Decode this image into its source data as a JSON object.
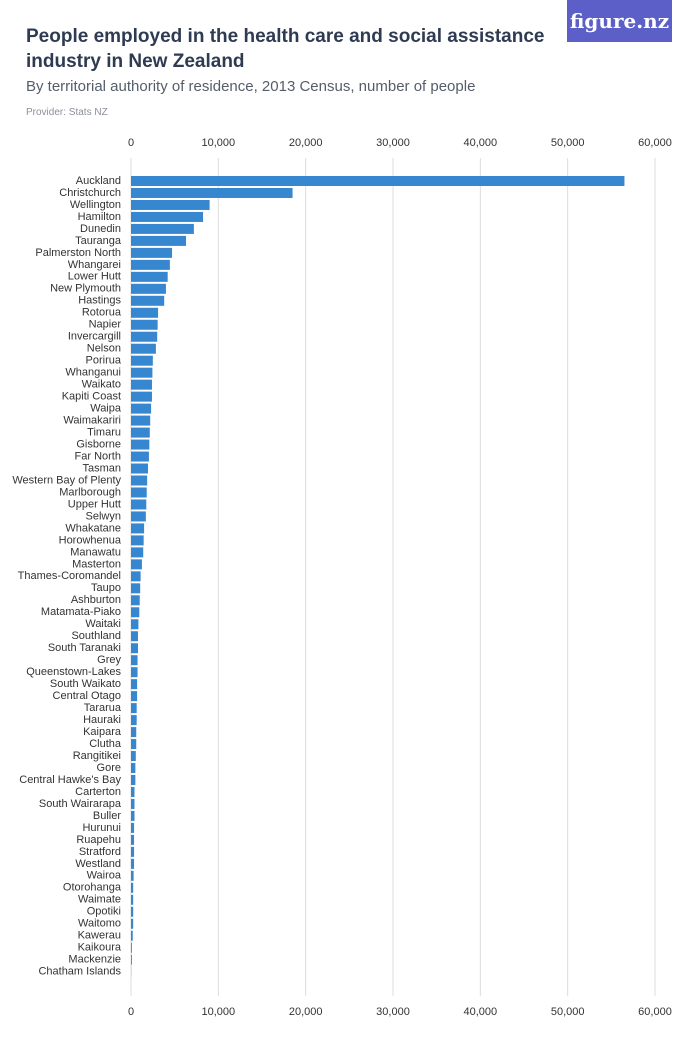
{
  "chart_data": {
    "type": "hbar",
    "title": "People employed in the health care and social assistance industry in New Zealand",
    "subtitle": "By territorial authority of residence, 2013 Census, number of people",
    "provider": "Provider: Stats NZ",
    "logo": "figure.nz",
    "color": "#3786d0",
    "grid": true,
    "xlim": [
      0,
      60000
    ],
    "xticks": [
      0,
      {
        "value": 10000,
        "label": "10,000"
      },
      {
        "value": 20000,
        "label": "20,000"
      },
      {
        "value": 30000,
        "label": "30,000"
      },
      {
        "value": 40000,
        "label": "40,000"
      },
      {
        "value": 50000,
        "label": "50,000"
      },
      {
        "value": 60000,
        "label": "60,000"
      }
    ],
    "categories": [
      "Auckland",
      "Christchurch",
      "Wellington",
      "Hamilton",
      "Dunedin",
      "Tauranga",
      "Palmerston North",
      "Whangarei",
      "Lower Hutt",
      "New Plymouth",
      "Hastings",
      "Rotorua",
      "Napier",
      "Invercargill",
      "Nelson",
      "Porirua",
      "Whanganui",
      "Waikato",
      "Kapiti Coast",
      "Waipa",
      "Waimakariri",
      "Timaru",
      "Gisborne",
      "Far North",
      "Tasman",
      "Western Bay of Plenty",
      "Marlborough",
      "Upper Hutt",
      "Selwyn",
      "Whakatane",
      "Horowhenua",
      "Manawatu",
      "Masterton",
      "Thames-Coromandel",
      "Taupo",
      "Ashburton",
      "Matamata-Piako",
      "Waitaki",
      "Southland",
      "South Taranaki",
      "Grey",
      "Queenstown-Lakes",
      "South Waikato",
      "Central Otago",
      "Tararua",
      "Hauraki",
      "Kaipara",
      "Clutha",
      "Rangitikei",
      "Gore",
      "Central Hawke's Bay",
      "Carterton",
      "South Wairarapa",
      "Buller",
      "Hurunui",
      "Ruapehu",
      "Stratford",
      "Westland",
      "Wairoa",
      "Otorohanga",
      "Waimate",
      "Opotiki",
      "Waitomo",
      "Kawerau",
      "Kaikoura",
      "Mackenzie",
      "Chatham Islands"
    ],
    "values": [
      56500,
      18500,
      9000,
      8250,
      7200,
      6300,
      4700,
      4450,
      4200,
      4000,
      3800,
      3100,
      3050,
      3000,
      2850,
      2500,
      2450,
      2400,
      2400,
      2300,
      2200,
      2150,
      2100,
      2050,
      1950,
      1850,
      1800,
      1750,
      1700,
      1500,
      1450,
      1400,
      1250,
      1100,
      1050,
      1000,
      950,
      850,
      800,
      800,
      750,
      750,
      700,
      700,
      650,
      650,
      600,
      600,
      550,
      500,
      500,
      400,
      400,
      400,
      350,
      350,
      350,
      350,
      300,
      250,
      250,
      250,
      250,
      200,
      100,
      100,
      20
    ]
  }
}
